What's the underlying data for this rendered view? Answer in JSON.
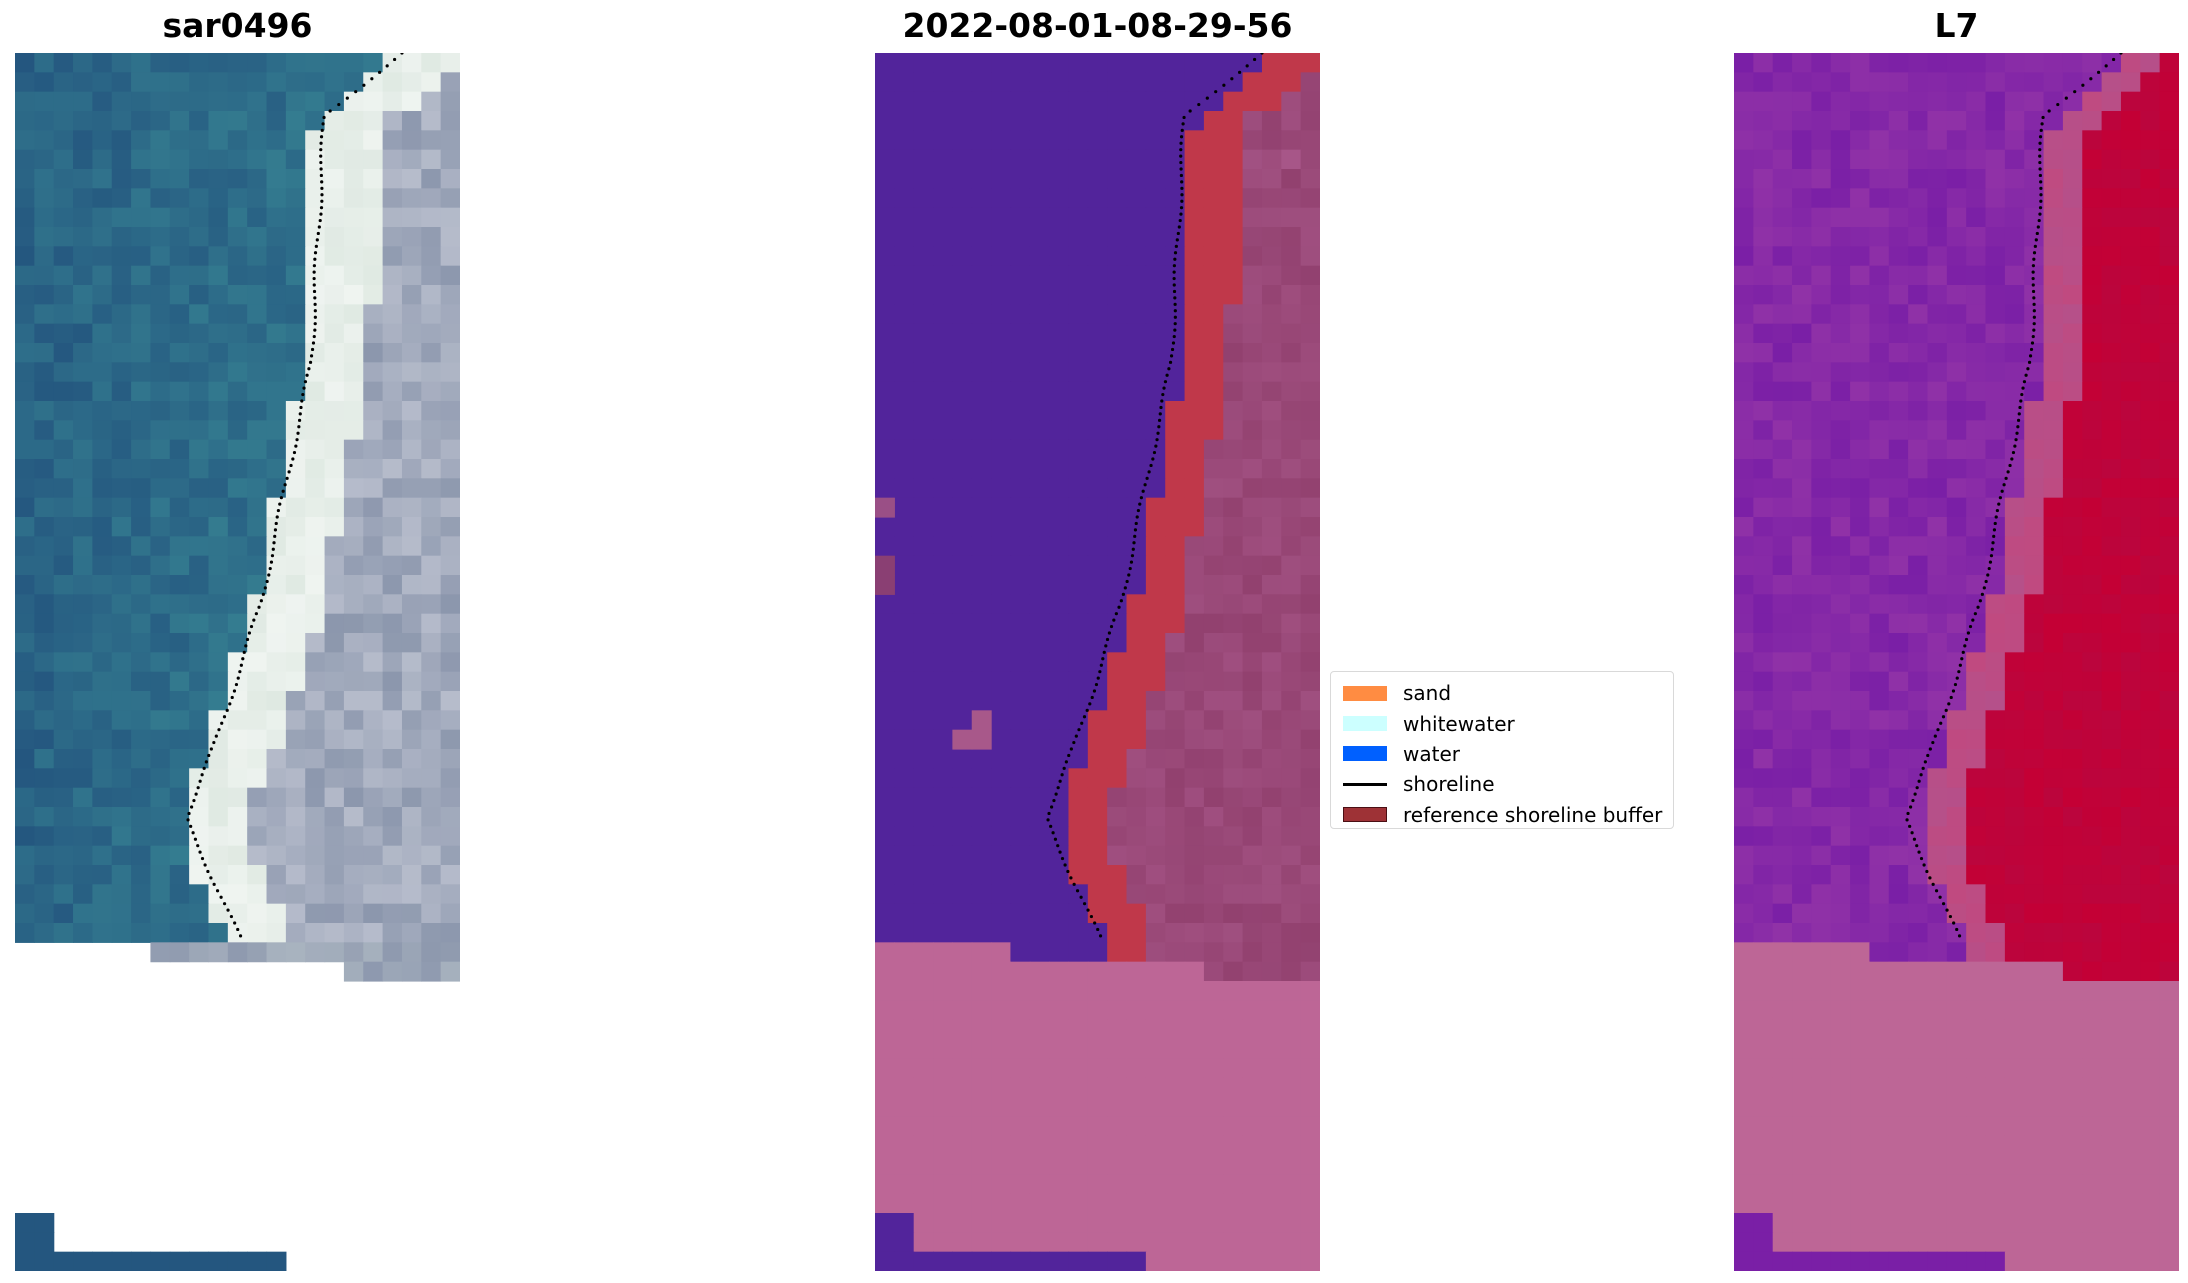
{
  "panels": [
    {
      "title": "sar0496",
      "kind": "rgb"
    },
    {
      "title": "2022-08-01-08-29-56",
      "kind": "classified"
    },
    {
      "title": "L7",
      "kind": "index"
    }
  ],
  "legend": {
    "placement": "center",
    "items": [
      {
        "label": "sand",
        "type": "patch",
        "color": "#ff8c42"
      },
      {
        "label": "whitewater",
        "type": "patch",
        "color": "#ccffff"
      },
      {
        "label": "water",
        "type": "patch",
        "color": "#0060ff"
      },
      {
        "label": "shoreline",
        "type": "line",
        "color": "#000000"
      },
      {
        "label": "reference shoreline buffer",
        "type": "patch",
        "color": "#9e3236"
      }
    ]
  },
  "colors": {
    "no_data_mask": "#bd6696",
    "classified_water": "#52249b",
    "classified_land": "#92416f",
    "buffer_overlay": "#c0384a",
    "index_low": "#7a1fa6",
    "index_high": "#c40035",
    "rgb_water": "#24567f",
    "rgb_beach": "#dfe9e2",
    "rgb_land": "#8c97ad"
  }
}
